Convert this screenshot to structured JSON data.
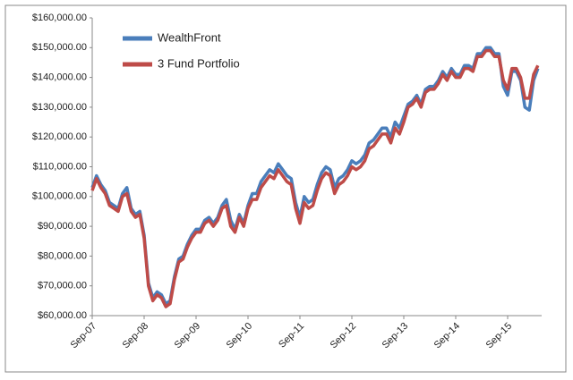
{
  "chart_data": {
    "type": "line",
    "categories": [
      "Sep-07",
      null,
      null,
      null,
      null,
      null,
      null,
      null,
      null,
      null,
      null,
      null,
      "Sep-08",
      null,
      null,
      null,
      null,
      null,
      null,
      null,
      null,
      null,
      null,
      null,
      "Sep-09",
      null,
      null,
      null,
      null,
      null,
      null,
      null,
      null,
      null,
      null,
      null,
      "Sep-10",
      null,
      null,
      null,
      null,
      null,
      null,
      null,
      null,
      null,
      null,
      null,
      "Sep-11",
      null,
      null,
      null,
      null,
      null,
      null,
      null,
      null,
      null,
      null,
      null,
      "Sep-12",
      null,
      null,
      null,
      null,
      null,
      null,
      null,
      null,
      null,
      null,
      null,
      "Sep-13",
      null,
      null,
      null,
      null,
      null,
      null,
      null,
      null,
      null,
      null,
      null,
      "Sep-14",
      null,
      null,
      null,
      null,
      null,
      null,
      null,
      null,
      null,
      null,
      null,
      "Sep-15",
      null,
      null,
      null,
      null,
      null,
      null,
      null
    ],
    "series": [
      {
        "name": "WealthFront",
        "color": "#4a7ebb",
        "values": [
          103000,
          107000,
          104000,
          102000,
          98000,
          97000,
          96000,
          101000,
          103000,
          96000,
          94000,
          95000,
          87000,
          71000,
          66000,
          68000,
          67000,
          64000,
          65000,
          73000,
          79000,
          80000,
          84000,
          87000,
          89000,
          89000,
          92000,
          93000,
          91000,
          93000,
          97000,
          99000,
          92000,
          89000,
          94000,
          91000,
          97000,
          101000,
          101000,
          105000,
          107000,
          109000,
          108000,
          111000,
          109000,
          107000,
          106000,
          98000,
          93000,
          100000,
          98000,
          99000,
          104000,
          108000,
          110000,
          109000,
          103000,
          106000,
          107000,
          109000,
          112000,
          111000,
          112000,
          114000,
          118000,
          119000,
          121000,
          123000,
          123000,
          120000,
          125000,
          123000,
          127000,
          131000,
          132000,
          134000,
          131000,
          136000,
          137000,
          137000,
          139000,
          142000,
          140000,
          143000,
          141000,
          141000,
          144000,
          144000,
          143000,
          148000,
          148000,
          150000,
          150000,
          148000,
          148000,
          137000,
          134000,
          142000,
          142000,
          139000,
          130000,
          129000,
          139000,
          143000
        ]
      },
      {
        "name": "3 Fund Portfolio",
        "color": "#be4b48",
        "values": [
          102000,
          106000,
          103000,
          101000,
          97000,
          96000,
          95000,
          100000,
          101000,
          95000,
          93000,
          94000,
          86000,
          70000,
          65000,
          67000,
          66000,
          63000,
          64000,
          72000,
          78000,
          79000,
          83000,
          86000,
          88000,
          88000,
          91000,
          92000,
          90000,
          92000,
          96000,
          97000,
          90000,
          88000,
          93000,
          90000,
          96000,
          99000,
          99000,
          103000,
          105000,
          107000,
          106000,
          109000,
          107000,
          105000,
          104000,
          96000,
          91000,
          98000,
          96000,
          97000,
          102000,
          106000,
          108000,
          107000,
          101000,
          104000,
          105000,
          107000,
          110000,
          109000,
          110000,
          112000,
          116000,
          117000,
          119000,
          121000,
          121000,
          118000,
          123000,
          121000,
          125000,
          130000,
          131000,
          133000,
          130000,
          135000,
          136000,
          136000,
          138000,
          141000,
          139000,
          142000,
          140000,
          140000,
          143000,
          143000,
          142000,
          147000,
          147000,
          149000,
          149000,
          147000,
          147000,
          139000,
          136000,
          143000,
          143000,
          140000,
          133000,
          133000,
          141000,
          144000
        ]
      }
    ],
    "ylim": [
      60000,
      160000
    ],
    "yticks": [
      {
        "value": 60000,
        "label": "$60,000.00"
      },
      {
        "value": 70000,
        "label": "$70,000.00"
      },
      {
        "value": 80000,
        "label": "$80,000.00"
      },
      {
        "value": 90000,
        "label": "$90,000.00"
      },
      {
        "value": 100000,
        "label": "$100,000.00"
      },
      {
        "value": 110000,
        "label": "$110,000.00"
      },
      {
        "value": 120000,
        "label": "$120,000.00"
      },
      {
        "value": 130000,
        "label": "$130,000.00"
      },
      {
        "value": 140000,
        "label": "$140,000.00"
      },
      {
        "value": 150000,
        "label": "$150,000.00"
      },
      {
        "value": 160000,
        "label": "$160,000.00"
      }
    ],
    "grid": false,
    "legend": "top-left"
  }
}
